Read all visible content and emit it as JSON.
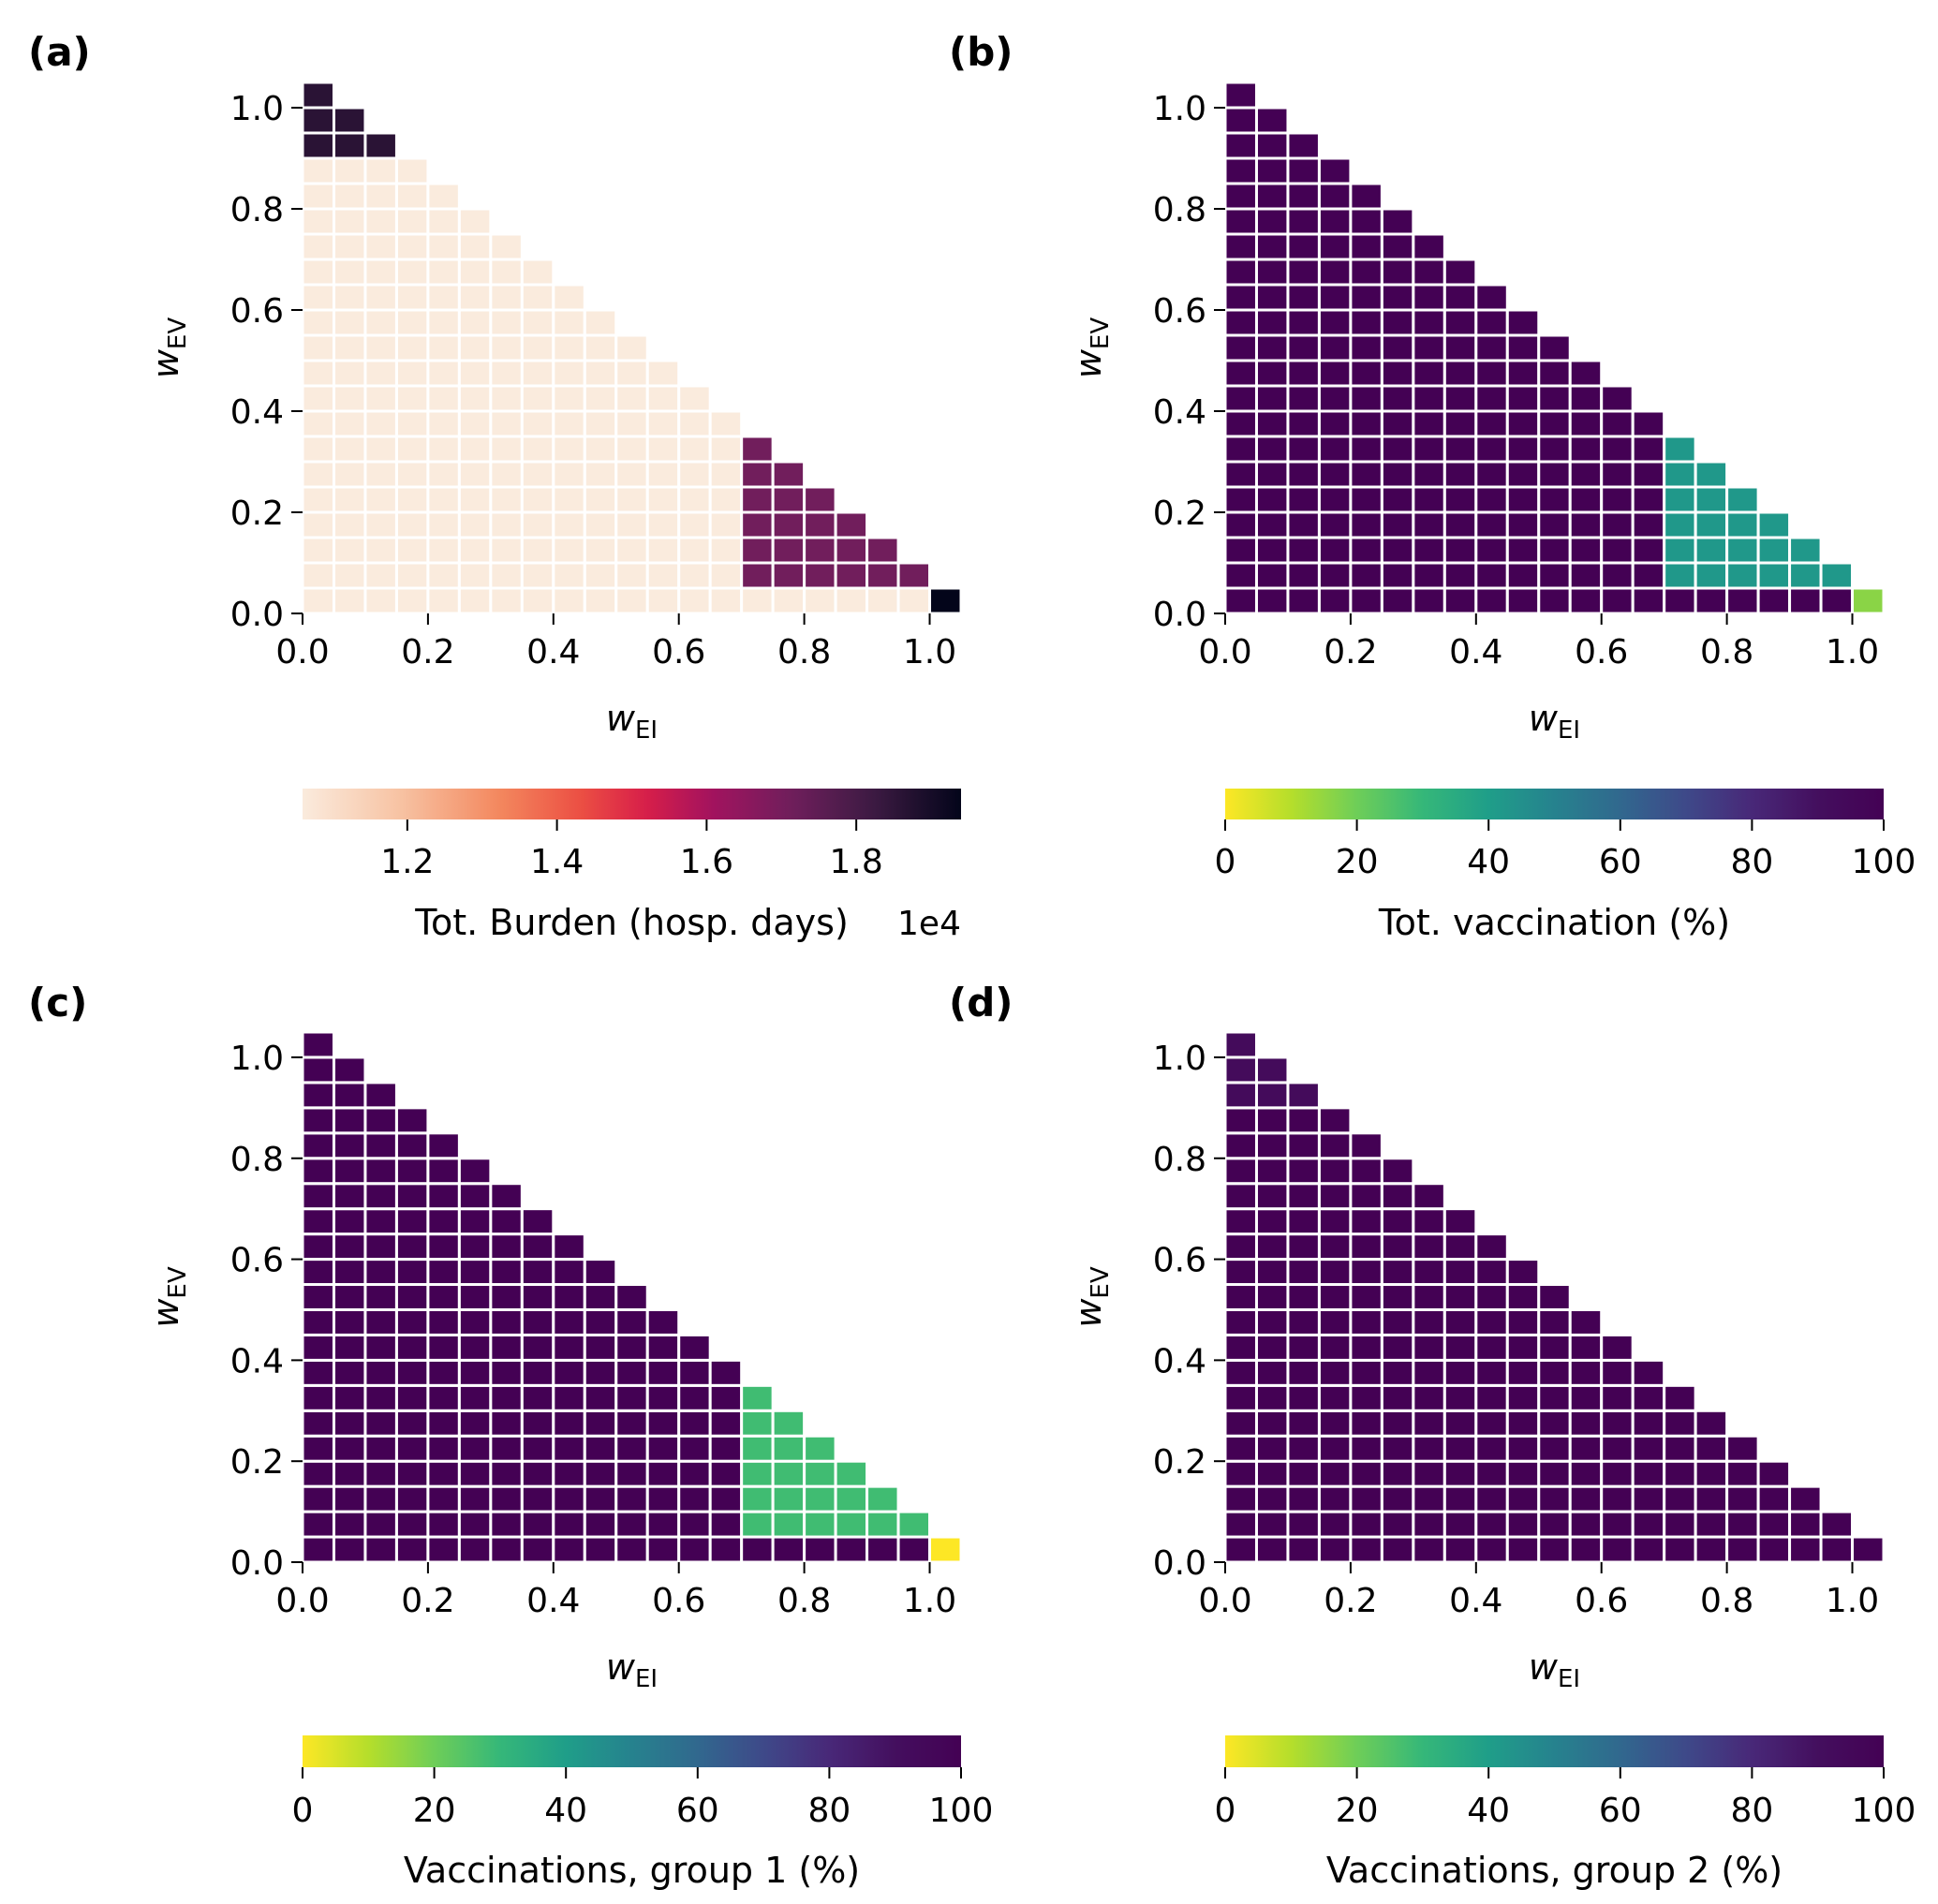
{
  "chart_data": [
    {
      "type": "heatmap",
      "panel_label": "(a)",
      "xlabel": "w",
      "xlabel_sub": "EI",
      "ylabel": "w",
      "ylabel_sub": "EV",
      "x_ticks": [
        "0.0",
        "0.2",
        "0.4",
        "0.6",
        "0.8",
        "1.0"
      ],
      "y_ticks": [
        "0.0",
        "0.2",
        "0.4",
        "0.6",
        "0.8",
        "1.0"
      ],
      "grid_step": 0.05,
      "mask": "w_EI + w_EV <= 1",
      "colormap": "rocket_r",
      "colorbar": {
        "label": "Tot. Burden (hosp. days)",
        "offset_text": "1e4",
        "min": 1.06,
        "max": 1.94,
        "ticks": [
          "1.2",
          "1.4",
          "1.6",
          "1.8"
        ],
        "tick_values": [
          1.2,
          1.4,
          1.6,
          1.8
        ]
      },
      "regions": [
        {
          "rule": "w_EI=1.0, w_EV=0.0",
          "value": 1.94
        },
        {
          "rule": "w_EV>=0.9, w_EI<=0.05",
          "value": 1.86
        },
        {
          "rule": "w_EV=0.9, w_EI=0.1",
          "value": 1.86
        },
        {
          "rule": "w_EV=0.2, w_EI<=0.05",
          "value": 1.06
        },
        {
          "rule": "w_EV=0.15, w_EI<=0.35",
          "value": 1.06
        },
        {
          "rule": "w_EV in {0.05, 0.1}, w_EI<=0.65",
          "value": 1.06
        },
        {
          "rule": "w_EV=0.0, w_EI<=0.95",
          "value": 1.06
        },
        {
          "rule": "otherwise",
          "value": 1.71
        }
      ]
    },
    {
      "type": "heatmap",
      "panel_label": "(b)",
      "xlabel": "w",
      "xlabel_sub": "EI",
      "ylabel": "w",
      "ylabel_sub": "EV",
      "x_ticks": [
        "0.0",
        "0.2",
        "0.4",
        "0.6",
        "0.8",
        "1.0"
      ],
      "y_ticks": [
        "0.0",
        "0.2",
        "0.4",
        "0.6",
        "0.8",
        "1.0"
      ],
      "grid_step": 0.05,
      "mask": "w_EI + w_EV <= 1",
      "colormap": "viridis_r",
      "colorbar": {
        "label": "Tot. vaccination (%)",
        "min": 0,
        "max": 100,
        "ticks": [
          "0",
          "20",
          "40",
          "60",
          "80",
          "100"
        ],
        "tick_values": [
          0,
          20,
          40,
          60,
          80,
          100
        ]
      },
      "regions": [
        {
          "rule": "w_EI=1.0, w_EV=0.0",
          "value": 16
        },
        {
          "rule": "w_EV=0.2, w_EI<=0.05",
          "value": 100
        },
        {
          "rule": "w_EV=0.15, w_EI<=0.35",
          "value": 100
        },
        {
          "rule": "w_EV in {0.05, 0.1}, w_EI<=0.65",
          "value": 100
        },
        {
          "rule": "w_EV=0.0, w_EI<=0.95",
          "value": 100
        },
        {
          "rule": "otherwise",
          "value": 42
        }
      ]
    },
    {
      "type": "heatmap",
      "panel_label": "(c)",
      "xlabel": "w",
      "xlabel_sub": "EI",
      "ylabel": "w",
      "ylabel_sub": "EV",
      "x_ticks": [
        "0.0",
        "0.2",
        "0.4",
        "0.6",
        "0.8",
        "1.0"
      ],
      "y_ticks": [
        "0.0",
        "0.2",
        "0.4",
        "0.6",
        "0.8",
        "1.0"
      ],
      "grid_step": 0.05,
      "mask": "w_EI + w_EV <= 1",
      "colormap": "viridis_r",
      "colorbar": {
        "label": "Vaccinations, group 1 (%)",
        "min": 0,
        "max": 100,
        "ticks": [
          "0",
          "20",
          "40",
          "60",
          "80",
          "100"
        ],
        "tick_values": [
          0,
          20,
          40,
          60,
          80,
          100
        ]
      },
      "regions": [
        {
          "rule": "w_EI=1.0, w_EV=0.0",
          "value": 0
        },
        {
          "rule": "w_EV=0.2, w_EI<=0.05",
          "value": 100
        },
        {
          "rule": "w_EV=0.15, w_EI<=0.35",
          "value": 100
        },
        {
          "rule": "w_EV in {0.05, 0.1}, w_EI<=0.65",
          "value": 100
        },
        {
          "rule": "w_EV=0.0, w_EI<=0.95",
          "value": 100
        },
        {
          "rule": "otherwise",
          "value": 28
        }
      ]
    },
    {
      "type": "heatmap",
      "panel_label": "(d)",
      "xlabel": "w",
      "xlabel_sub": "EI",
      "ylabel": "w",
      "ylabel_sub": "EV",
      "x_ticks": [
        "0.0",
        "0.2",
        "0.4",
        "0.6",
        "0.8",
        "1.0"
      ],
      "y_ticks": [
        "0.0",
        "0.2",
        "0.4",
        "0.6",
        "0.8",
        "1.0"
      ],
      "grid_step": 0.05,
      "mask": "w_EI + w_EV <= 1",
      "colormap": "viridis_r",
      "colorbar": {
        "label": "Vaccinations, group 2 (%)",
        "min": 0,
        "max": 100,
        "ticks": [
          "0",
          "20",
          "40",
          "60",
          "80",
          "100"
        ],
        "tick_values": [
          0,
          20,
          40,
          60,
          80,
          100
        ]
      },
      "regions": [
        {
          "rule": "w_EV>=0.9, w_EI<=0.05",
          "value": 93
        },
        {
          "rule": "w_EV=0.9, w_EI=0.1",
          "value": 93
        },
        {
          "rule": "otherwise",
          "value": 100
        }
      ]
    }
  ]
}
